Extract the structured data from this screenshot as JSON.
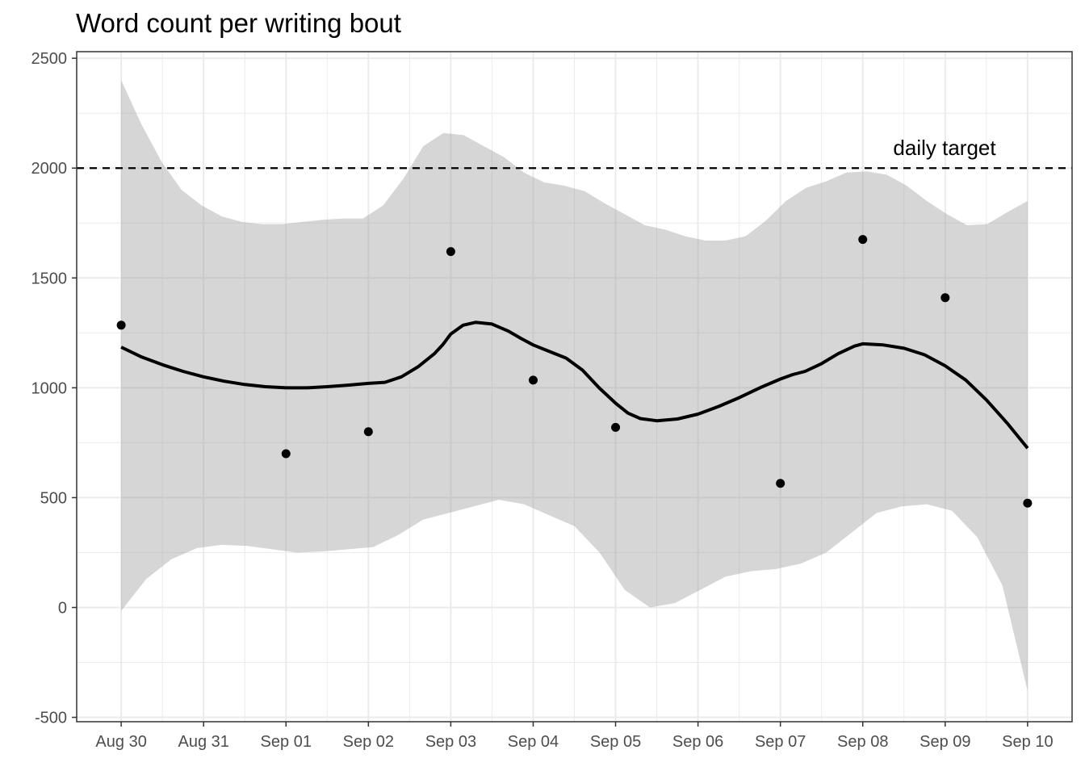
{
  "chart_data": {
    "type": "scatter",
    "title": "Word count per writing bout",
    "xlabel": "",
    "ylabel": "",
    "x_tick_labels": [
      "Aug 30",
      "Aug 31",
      "Sep 01",
      "Sep 02",
      "Sep 03",
      "Sep 04",
      "Sep 05",
      "Sep 06",
      "Sep 07",
      "Sep 08",
      "Sep 09",
      "Sep 10"
    ],
    "y_ticks": [
      -500,
      0,
      500,
      1000,
      1500,
      2000,
      2500
    ],
    "ylim": [
      -520,
      2530
    ],
    "xlim": [
      -0.54,
      11.54
    ],
    "grid": true,
    "points": [
      {
        "x": "Aug 30",
        "y": 1285
      },
      {
        "x": "Sep 01",
        "y": 700
      },
      {
        "x": "Sep 02",
        "y": 800
      },
      {
        "x": "Sep 03",
        "y": 1620
      },
      {
        "x": "Sep 04",
        "y": 1035
      },
      {
        "x": "Sep 05",
        "y": 820
      },
      {
        "x": "Sep 07",
        "y": 565
      },
      {
        "x": "Sep 08",
        "y": 1675
      },
      {
        "x": "Sep 09",
        "y": 1410
      },
      {
        "x": "Sep 10",
        "y": 475
      }
    ],
    "smooth": {
      "x": [
        0,
        0.25,
        0.5,
        0.75,
        1,
        1.25,
        1.5,
        1.75,
        2,
        2.25,
        2.5,
        2.75,
        3,
        3.2,
        3.4,
        3.6,
        3.8,
        3.9,
        4,
        4.15,
        4.3,
        4.5,
        4.7,
        4.85,
        5,
        5.2,
        5.4,
        5.6,
        5.8,
        6,
        6.15,
        6.3,
        6.5,
        6.75,
        7,
        7.25,
        7.5,
        7.75,
        8,
        8.15,
        8.3,
        8.5,
        8.7,
        8.9,
        9,
        9.25,
        9.5,
        9.75,
        10,
        10.25,
        10.5,
        10.75,
        11
      ],
      "y": [
        1185,
        1140,
        1105,
        1075,
        1050,
        1030,
        1015,
        1005,
        1000,
        1000,
        1005,
        1012,
        1020,
        1025,
        1050,
        1095,
        1155,
        1195,
        1245,
        1285,
        1298,
        1290,
        1258,
        1225,
        1195,
        1165,
        1135,
        1080,
        1000,
        930,
        885,
        860,
        850,
        858,
        880,
        915,
        955,
        1000,
        1040,
        1060,
        1075,
        1110,
        1155,
        1190,
        1200,
        1195,
        1180,
        1150,
        1100,
        1035,
        945,
        840,
        725
      ]
    },
    "ci_upper": [
      2400,
      2200,
      2030,
      1900,
      1830,
      1780,
      1755,
      1745,
      1745,
      1755,
      1765,
      1770,
      1770,
      1830,
      1950,
      2100,
      2160,
      2150,
      2100,
      2050,
      1980,
      1935,
      1920,
      1895,
      1840,
      1790,
      1740,
      1720,
      1690,
      1670,
      1670,
      1690,
      1760,
      1850,
      1910,
      1940,
      1980,
      1985,
      1970,
      1920,
      1850,
      1790,
      1740,
      1745,
      1800,
      1850
    ],
    "ci_lower": [
      -15,
      130,
      220,
      270,
      285,
      280,
      265,
      250,
      255,
      265,
      275,
      330,
      400,
      430,
      460,
      490,
      470,
      420,
      370,
      250,
      80,
      0,
      20,
      80,
      140,
      165,
      175,
      200,
      250,
      340,
      430,
      460,
      470,
      440,
      320,
      100,
      -380
    ],
    "hline": {
      "y": 2000,
      "label": "daily target"
    }
  }
}
